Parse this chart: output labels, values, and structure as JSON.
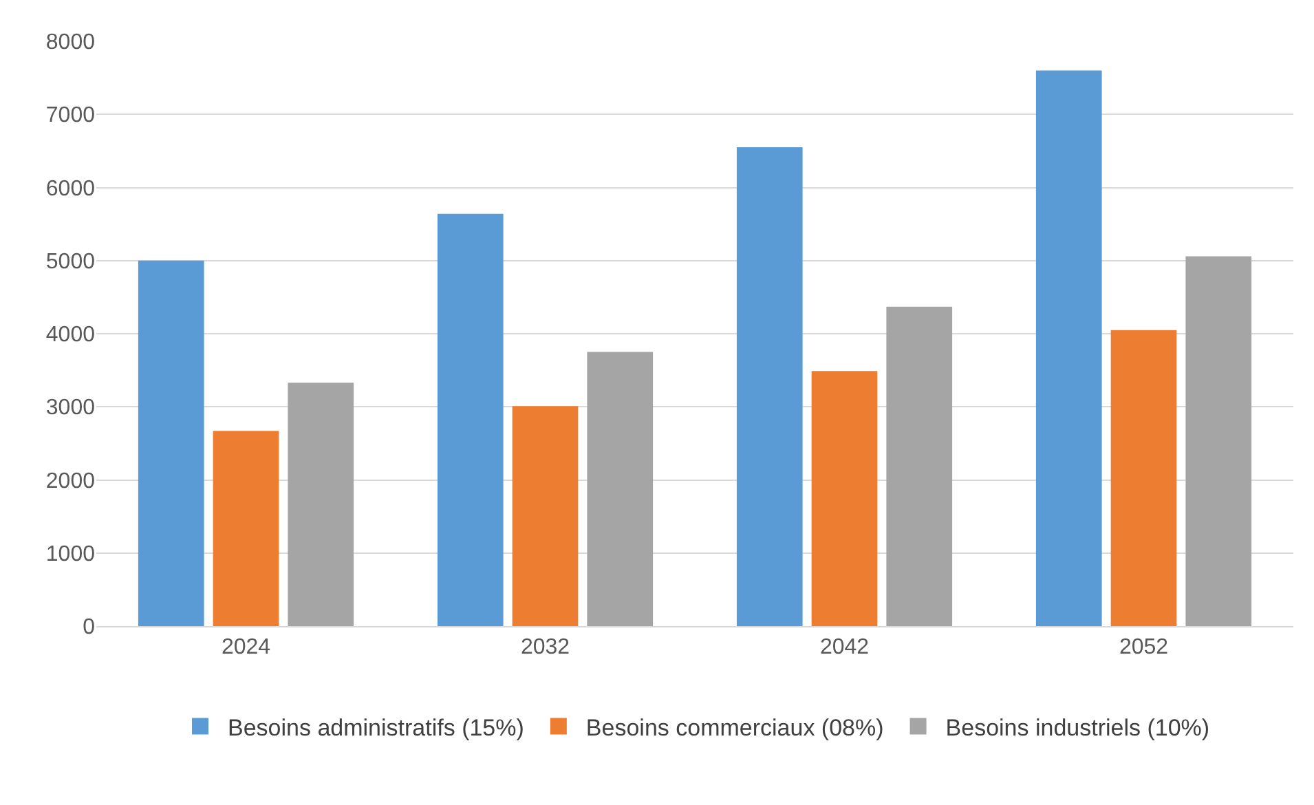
{
  "chart_data": {
    "type": "bar",
    "categories": [
      "2024",
      "2032",
      "2042",
      "2052"
    ],
    "series": [
      {
        "name": "Besoins administratifs (15%)",
        "color": "#5b9bd5",
        "values": [
          5000,
          5640,
          6550,
          7600
        ]
      },
      {
        "name": "Besoins commerciaux (08%)",
        "color": "#ed7d31",
        "values": [
          2670,
          3010,
          3490,
          4050
        ]
      },
      {
        "name": "Besoins industriels (10%)",
        "color": "#a5a5a5",
        "values": [
          3330,
          3750,
          4370,
          5060
        ]
      }
    ],
    "ylim": [
      0,
      8000
    ],
    "yticks": [
      0,
      1000,
      2000,
      3000,
      4000,
      5000,
      6000,
      7000,
      8000
    ],
    "grid": "y",
    "legend": "bottom"
  }
}
